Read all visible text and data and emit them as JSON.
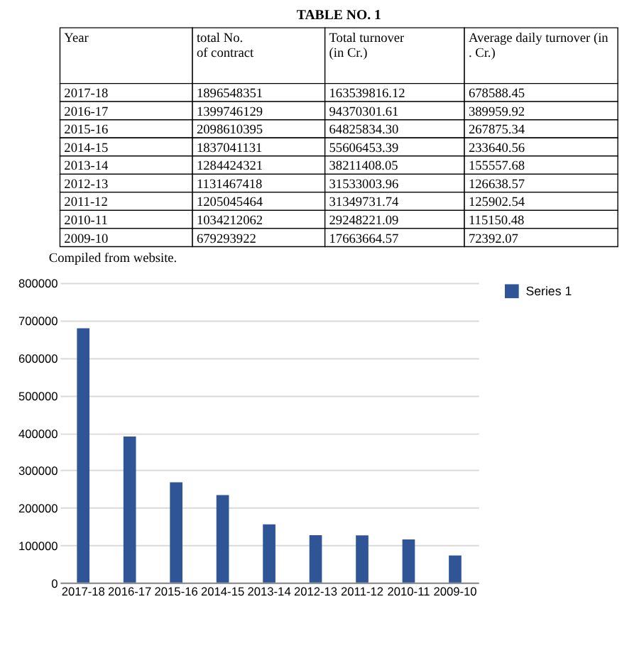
{
  "chart_data": [
    {
      "type": "other",
      "title": "TABLE NO. 1",
      "annotations": [
        "Year",
        "total No. of contract",
        "Total turnover (in Cr.)",
        "Average daily turnover (in . Cr.)",
        "2017-18",
        "1896548351",
        "163539816.12",
        "678588.45",
        "2016-17",
        "1399746129",
        "94370301.61",
        "389959.92",
        "2015-16",
        "2098610395",
        "64825834.30",
        "267875.34",
        "2014-15",
        "1837041131",
        "55606453.39",
        "233640.56",
        "2013-14",
        "1284424321",
        "38211408.05",
        "155557.68",
        "2012-13",
        "1131467418",
        "31533003.96",
        "126638.57",
        "2011-12",
        "1205045464",
        "31349731.74",
        "125902.54",
        "2010-11",
        "1034212062",
        "29248221.09",
        "115150.48",
        "2009-10",
        "679293922",
        "17663664.57",
        "72392.07",
        "Compiled from website."
      ]
    },
    {
      "type": "bar",
      "categories": [
        "2017-18",
        "2016-17",
        "2015-16",
        "2014-15",
        "2013-14",
        "2012-13",
        "2011-12",
        "2010-11",
        "2009-10"
      ],
      "series": [
        {
          "name": "Series 1",
          "color": "#2f5597",
          "values": [
            678588.45,
            389959.92,
            267875.34,
            233640.56,
            155557.68,
            126638.57,
            125902.54,
            115150.48,
            72392.07
          ]
        }
      ],
      "ylim": [
        0,
        800000
      ],
      "yticks": [
        0,
        100000,
        200000,
        300000,
        400000,
        500000,
        600000,
        700000,
        800000
      ],
      "grid": "y",
      "legend": "right"
    }
  ]
}
